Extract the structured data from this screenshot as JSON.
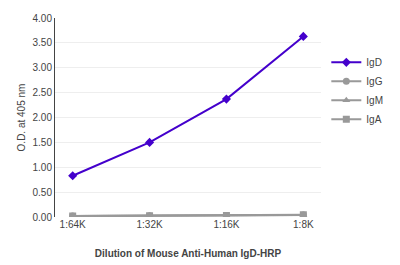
{
  "chart_data": {
    "type": "line",
    "categories": [
      "1:64K",
      "1:32K",
      "1:16K",
      "1:8K"
    ],
    "series": [
      {
        "name": "IgD",
        "color": "#4400CC",
        "marker": "diamond",
        "values": [
          0.83,
          1.5,
          2.37,
          3.63
        ]
      },
      {
        "name": "IgG",
        "color": "#999999",
        "marker": "circle",
        "values": [
          0.02,
          0.025,
          0.03,
          0.04
        ]
      },
      {
        "name": "IgM",
        "color": "#999999",
        "marker": "triangle-up",
        "values": [
          0.02,
          0.025,
          0.03,
          0.04
        ]
      },
      {
        "name": "IgA",
        "color": "#999999",
        "marker": "square",
        "values": [
          0.02,
          0.025,
          0.03,
          0.045
        ]
      }
    ],
    "x_label": "Dilution of Mouse Anti-Human IgD-HRP",
    "y_label": "O.D. at 405 nm",
    "ylim": [
      0.0,
      4.0
    ],
    "yticks": [
      {
        "value": 0.0,
        "label": "0.00"
      },
      {
        "value": 0.5,
        "label": "0.50"
      },
      {
        "value": 1.0,
        "label": "1.00"
      },
      {
        "value": 1.5,
        "label": "1.50"
      },
      {
        "value": 2.0,
        "label": "2.00"
      },
      {
        "value": 2.5,
        "label": "2.50"
      },
      {
        "value": 3.0,
        "label": "3.00"
      },
      {
        "value": 3.5,
        "label": "3.50"
      },
      {
        "value": 4.0,
        "label": "4.00"
      }
    ],
    "grid": true,
    "legend": "right"
  }
}
